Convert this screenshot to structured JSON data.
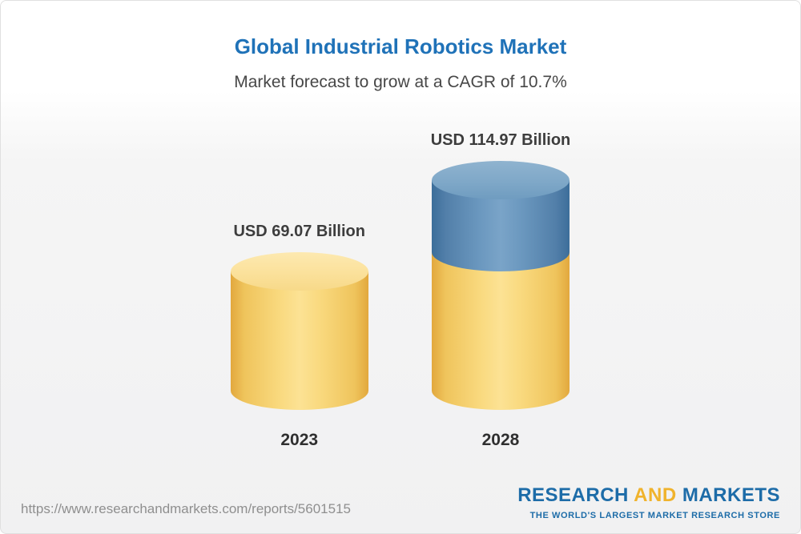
{
  "header": {
    "title": "Global Industrial Robotics Market",
    "subtitle": "Market forecast to grow at a CAGR of 10.7%"
  },
  "chart_data": {
    "type": "bar",
    "title": "Global Industrial Robotics Market",
    "subtitle": "Market forecast to grow at a CAGR of 10.7%",
    "categories": [
      "2023",
      "2028"
    ],
    "values": [
      69.07,
      114.97
    ],
    "value_labels": [
      "USD 69.07 Billion",
      "USD 114.97 Billion"
    ],
    "unit": "USD Billion",
    "cagr": "10.7%",
    "legend_position": "none",
    "grid": false,
    "colors": {
      "base_segment": "#f7cf6b",
      "growth_segment": "#5c8cb4"
    }
  },
  "footer": {
    "url": "https://www.researchandmarkets.com/reports/5601515",
    "logo": {
      "word1": "RESEARCH",
      "word2": "AND",
      "word3": "MARKETS",
      "tagline": "THE WORLD'S LARGEST MARKET RESEARCH STORE"
    }
  }
}
